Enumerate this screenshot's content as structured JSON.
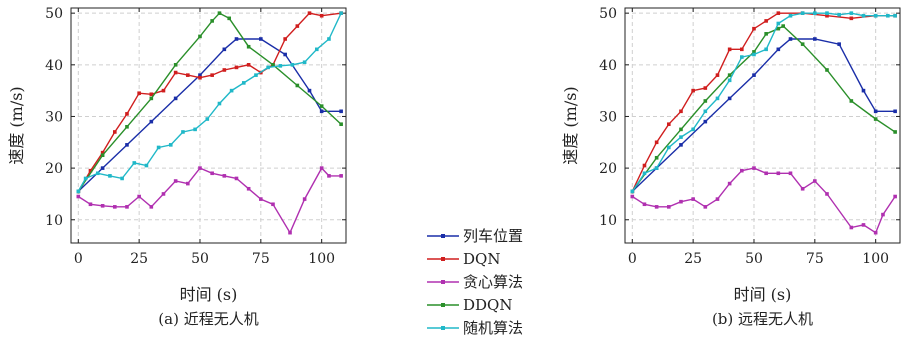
{
  "chart_data": [
    {
      "type": "line",
      "caption": "(a) 近程无人机",
      "xlabel": "时间 (s)",
      "ylabel": "速度 (m/s)",
      "xlim": [
        -3,
        110
      ],
      "ylim": [
        5.5,
        51
      ],
      "xticks": [
        0,
        25,
        50,
        75,
        100
      ],
      "yticks": [
        10,
        20,
        30,
        40,
        50
      ],
      "grid": true,
      "series": [
        {
          "name": "列车位置",
          "color": "#1a2ea8",
          "x": [
            0,
            10,
            20,
            30,
            40,
            50,
            60,
            65,
            75,
            85,
            95,
            100,
            108
          ],
          "y": [
            15.5,
            20,
            24.5,
            29,
            33.5,
            38,
            43,
            45,
            45,
            42,
            35,
            31,
            31
          ]
        },
        {
          "name": "DQN",
          "color": "#d01e1e",
          "x": [
            0,
            5,
            10,
            15,
            20,
            25,
            30,
            35,
            40,
            45,
            50,
            55,
            60,
            65,
            70,
            75,
            80,
            85,
            90,
            95,
            100,
            108
          ],
          "y": [
            15.5,
            19.5,
            23,
            27,
            30.5,
            34.5,
            34.3,
            35,
            38.5,
            38,
            37.5,
            38,
            39,
            39.5,
            40,
            38.5,
            40,
            45,
            47.5,
            50,
            49.5,
            50
          ]
        },
        {
          "name": "贪心算法",
          "color": "#b030b0",
          "x": [
            0,
            5,
            10,
            15,
            20,
            25,
            30,
            35,
            40,
            45,
            50,
            55,
            60,
            65,
            70,
            75,
            80,
            87,
            93,
            100,
            103,
            108
          ],
          "y": [
            14.5,
            13,
            12.7,
            12.5,
            12.5,
            14.5,
            12.5,
            15,
            17.5,
            17,
            20,
            19,
            18.5,
            18,
            16,
            14,
            13,
            7.5,
            14,
            20,
            18.5,
            18.5
          ]
        },
        {
          "name": "DDQN",
          "color": "#2a8f2a",
          "x": [
            0,
            10,
            20,
            30,
            40,
            50,
            55,
            58,
            62,
            70,
            80,
            90,
            100,
            108
          ],
          "y": [
            15.5,
            22.5,
            28,
            33.5,
            40,
            45.5,
            48.5,
            50,
            49,
            43.5,
            40,
            36,
            32,
            28.5
          ]
        },
        {
          "name": "随机算法",
          "color": "#20b8c8",
          "x": [
            0,
            3,
            8,
            13,
            18,
            23,
            28,
            33,
            38,
            43,
            48,
            53,
            58,
            63,
            68,
            73,
            78,
            83,
            88,
            93,
            98,
            103,
            108
          ],
          "y": [
            15.5,
            18,
            19,
            18.5,
            18,
            21,
            20.5,
            24,
            24.5,
            27,
            27.5,
            29.5,
            32.5,
            35,
            36.5,
            38,
            39.5,
            39.8,
            40,
            40.5,
            43,
            45,
            50
          ]
        }
      ]
    },
    {
      "type": "line",
      "caption": "(b) 远程无人机",
      "xlabel": "时间 (s)",
      "ylabel": "速度 (m/s)",
      "xlim": [
        -3,
        110
      ],
      "ylim": [
        5.5,
        51
      ],
      "xticks": [
        0,
        25,
        50,
        75,
        100
      ],
      "yticks": [
        10,
        20,
        30,
        40,
        50
      ],
      "grid": true,
      "series": [
        {
          "name": "列车位置",
          "color": "#1a2ea8",
          "x": [
            0,
            10,
            20,
            30,
            40,
            50,
            60,
            65,
            75,
            85,
            95,
            100,
            108
          ],
          "y": [
            15.5,
            20,
            24.5,
            29,
            33.5,
            38,
            43,
            45,
            45,
            44,
            35,
            31,
            31
          ]
        },
        {
          "name": "DQN",
          "color": "#d01e1e",
          "x": [
            0,
            5,
            10,
            15,
            20,
            25,
            30,
            35,
            40,
            45,
            50,
            55,
            60,
            70,
            80,
            90,
            100,
            108
          ],
          "y": [
            15.5,
            20.5,
            25,
            28.5,
            31,
            35,
            35.5,
            38,
            43,
            43,
            47,
            48.5,
            50,
            50,
            49.5,
            49,
            49.5,
            49.5
          ]
        },
        {
          "name": "贪心算法",
          "color": "#b030b0",
          "x": [
            0,
            5,
            10,
            15,
            20,
            25,
            30,
            35,
            40,
            45,
            50,
            55,
            60,
            65,
            70,
            75,
            80,
            90,
            95,
            100,
            103,
            108
          ],
          "y": [
            14.5,
            13,
            12.5,
            12.5,
            13.5,
            14,
            12.5,
            14,
            17,
            19.5,
            20,
            19,
            19,
            19,
            16,
            17.5,
            15,
            8.5,
            9,
            7.5,
            11,
            14.5
          ]
        },
        {
          "name": "DDQN",
          "color": "#2a8f2a",
          "x": [
            0,
            10,
            20,
            30,
            40,
            50,
            55,
            60,
            62,
            70,
            80,
            90,
            100,
            108
          ],
          "y": [
            15.5,
            22,
            27.5,
            33,
            38,
            42.5,
            46,
            47,
            47.5,
            44,
            39,
            33,
            29.5,
            27
          ]
        },
        {
          "name": "随机算法",
          "color": "#20b8c8",
          "x": [
            0,
            5,
            10,
            15,
            20,
            25,
            30,
            35,
            40,
            45,
            50,
            55,
            60,
            65,
            70,
            75,
            80,
            85,
            90,
            95,
            100,
            105,
            108
          ],
          "y": [
            15.5,
            19,
            20,
            24,
            26,
            27.5,
            31,
            33.5,
            37,
            41.5,
            42,
            43,
            48,
            49.5,
            50,
            50,
            50,
            49.7,
            50,
            49.5,
            49.5,
            49.5,
            49.5
          ]
        }
      ]
    }
  ],
  "legend": {
    "placement": "center",
    "entries": [
      {
        "label": "列车位置",
        "color": "#1a2ea8"
      },
      {
        "label": "DQN",
        "color": "#d01e1e"
      },
      {
        "label": "贪心算法",
        "color": "#b030b0"
      },
      {
        "label": "DDQN",
        "color": "#2a8f2a"
      },
      {
        "label": "随机算法",
        "color": "#20b8c8"
      }
    ]
  }
}
